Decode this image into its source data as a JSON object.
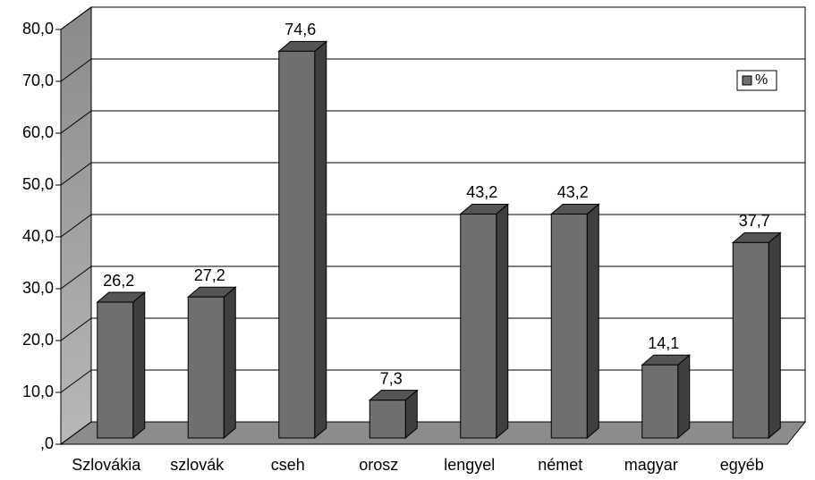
{
  "chart_data": {
    "type": "bar",
    "categories": [
      "Szlovákia",
      "szlovák",
      "cseh",
      "orosz",
      "lengyel",
      "német",
      "magyar",
      "egyéb"
    ],
    "series": [
      {
        "name": "%",
        "color": "#6f6f6f",
        "values": [
          26.2,
          27.2,
          74.6,
          7.3,
          43.2,
          43.2,
          14.1,
          37.7
        ],
        "value_labels": [
          "26,2",
          "27,2",
          "74,6",
          "7,3",
          "43,2",
          "43,2",
          "14,1",
          "37,7"
        ]
      }
    ],
    "ylim": [
      0,
      80
    ],
    "yticks": [
      {
        "value": 0,
        "label": ",0"
      },
      {
        "value": 10,
        "label": "10,0"
      },
      {
        "value": 20,
        "label": "20,0"
      },
      {
        "value": 30,
        "label": "30,0"
      },
      {
        "value": 40,
        "label": "40,0"
      },
      {
        "value": 50,
        "label": "50,0"
      },
      {
        "value": 60,
        "label": "60,0"
      },
      {
        "value": 70,
        "label": "70,0"
      },
      {
        "value": 80,
        "label": "80,0"
      }
    ],
    "grid": true,
    "legend": "upper right"
  }
}
